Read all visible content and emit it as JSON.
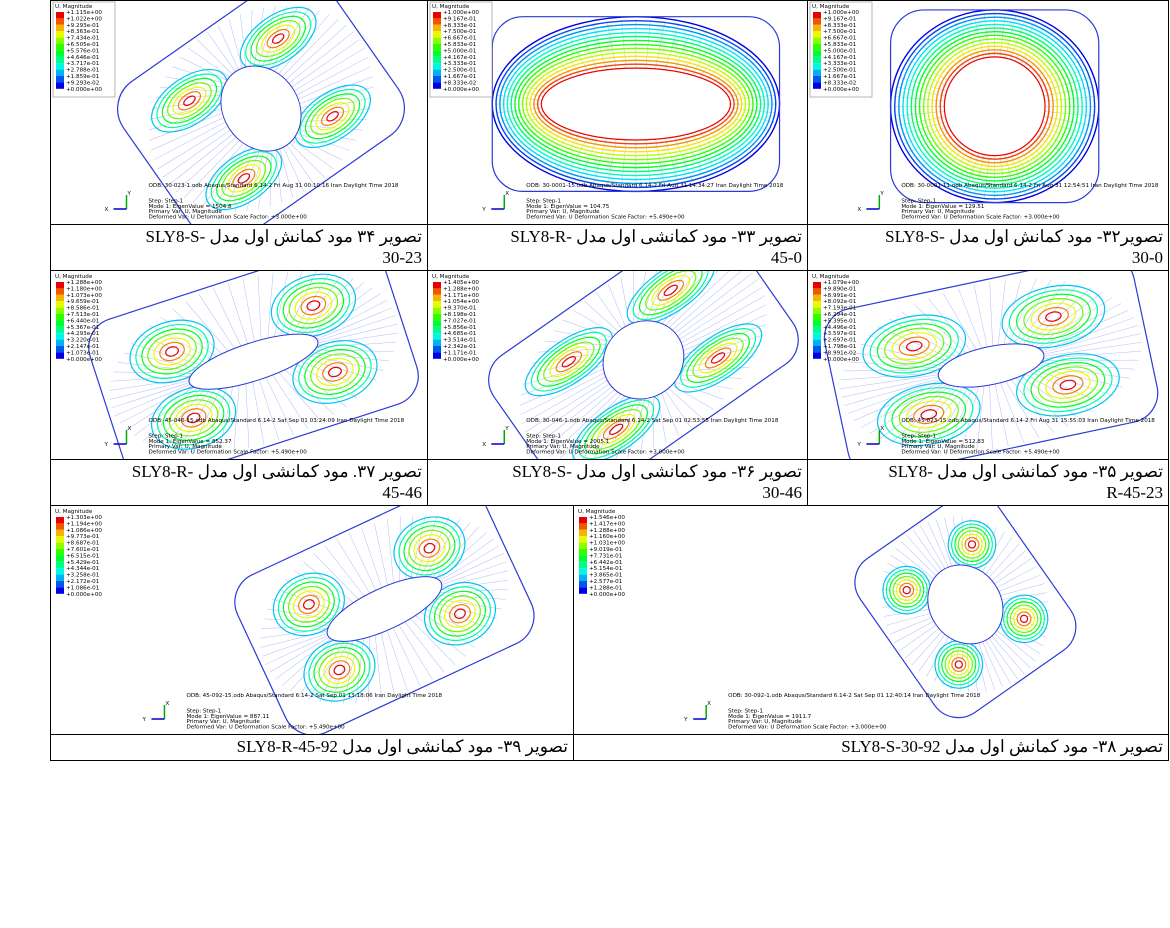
{
  "figures": [
    {
      "caption": [
        "تصویر۳۲- مود کمانش اول مدل -SLY8-S",
        "30-0"
      ],
      "legend": {
        "title": "U, Magnitude",
        "values": [
          "+1.000e+00",
          "+9.167e-01",
          "+8.333e-01",
          "+7.500e-01",
          "+6.667e-01",
          "+5.833e-01",
          "+5.000e-01",
          "+4.167e-01",
          "+3.333e-01",
          "+2.500e-01",
          "+1.667e-01",
          "+8.333e-02",
          "+0.000e+00"
        ]
      },
      "info": [
        "ODB: 30-0001-11.odb    Abaqus/Standard 6.14-2    Fri Aug 31 12:54:51 Iran Daylight Time 2018",
        "Step: Step-1",
        "Mode        1: EigenValue =    129.51",
        "Primary Var: U, Magnitude",
        "Deformed Var: U   Deformation Scale Factor: +3.000e+00"
      ],
      "triad": [
        "Y",
        "X"
      ]
    },
    {
      "caption": [
        "تصویر ۳۳- مود کمانشی اول مدل -SLY8-R",
        "45-0"
      ],
      "legend": {
        "title": "U, Magnitude",
        "values": [
          "+1.000e+00",
          "+9.167e-01",
          "+8.333e-01",
          "+7.500e-01",
          "+6.667e-01",
          "+5.833e-01",
          "+5.000e-01",
          "+4.167e-01",
          "+3.333e-01",
          "+2.500e-01",
          "+1.667e-01",
          "+8.333e-02",
          "+0.000e+00"
        ]
      },
      "info": [
        "ODB: 30-0001-15.odb    Abaqus/Standard 6.14-2    Fri Aug 31 14:34:27 Iran Daylight Time 2018",
        "Step: Step-1",
        "Mode        1: EigenValue =    104.75",
        "Primary Var: U, Magnitude",
        "Deformed Var: U   Deformation Scale Factor: +5.490e+00"
      ],
      "triad": [
        "X",
        "Y"
      ]
    },
    {
      "caption": [
        "تصویر ۳۴ مود کمانش اول مدل -SLY8-S",
        "30-23"
      ],
      "legend": {
        "title": "U, Magnitude",
        "values": [
          "+1.115e+00",
          "+1.022e+00",
          "+9.293e-01",
          "+8.363e-01",
          "+7.434e-01",
          "+6.505e-01",
          "+5.576e-01",
          "+4.646e-01",
          "+3.717e-01",
          "+2.788e-01",
          "+1.859e-01",
          "+9.293e-02",
          "+0.000e+00"
        ]
      },
      "info": [
        "ODB: 30-023-1.odb    Abaqus/Standard 6.14-2    Fri Aug 31 00:10:16 Iran Daylight Time 2018",
        "Step: Step-1",
        "Mode        1: EigenValue =    1504.8",
        "Primary Var: U, Magnitude",
        "Deformed Var: U   Deformation Scale Factor: +3.000e+00"
      ],
      "triad": [
        "Y",
        "X"
      ]
    },
    {
      "caption": [
        "تصویر ۳۵- مود کمانشی اول مدل -SLY8",
        "R-45-23"
      ],
      "legend": {
        "title": "U, Magnitude",
        "values": [
          "+1.079e+00",
          "+9.890e-01",
          "+8.991e-01",
          "+8.092e-01",
          "+7.193e-01",
          "+6.294e-01",
          "+5.395e-01",
          "+4.496e-01",
          "+3.597e-01",
          "+2.697e-01",
          "+1.798e-01",
          "+8.991e-02",
          "+0.000e+00"
        ]
      },
      "info": [
        "ODB: 45-023-15.odb    Abaqus/Standard 6.14-2    Fri Aug 31 15:55:03 Iran Daylight Time 2018",
        "Step: Step-1",
        "Mode        1: EigenValue =    512.83",
        "Primary Var: U, Magnitude",
        "Deformed Var: U   Deformation Scale Factor: +5.490e+00"
      ],
      "triad": [
        "X",
        "Y"
      ]
    },
    {
      "caption": [
        "تصویر ۳۶- مود کمانشی اول مدل -SLY8-S",
        "30-46"
      ],
      "legend": {
        "title": "U, Magnitude",
        "values": [
          "+1.405e+00",
          "+1.288e+00",
          "+1.171e+00",
          "+1.054e+00",
          "+9.370e-01",
          "+8.198e-01",
          "+7.027e-01",
          "+5.856e-01",
          "+4.685e-01",
          "+3.514e-01",
          "+2.342e-01",
          "+1.171e-01",
          "+0.000e+00"
        ]
      },
      "info": [
        "ODB: 30-046-1.odb    Abaqus/Standard 6.14-2    Sat Sep 01 02:53:55 Iran Daylight Time 2018",
        "Step: Step-1",
        "Mode        1: EigenValue =    2005.1",
        "Primary Var: U, Magnitude",
        "Deformed Var: U   Deformation Scale Factor: +3.000e+00"
      ],
      "triad": [
        "Y",
        "X"
      ]
    },
    {
      "caption": [
        "تصویر ۳۷. مود کمانشی اول مدل -SLY8-R",
        "45-46"
      ],
      "legend": {
        "title": "U, Magnitude",
        "values": [
          "+1.288e+00",
          "+1.180e+00",
          "+1.073e+00",
          "+9.659e-01",
          "+8.586e-01",
          "+7.513e-01",
          "+6.440e-01",
          "+5.367e-01",
          "+4.293e-01",
          "+3.220e-01",
          "+2.147e-01",
          "+1.073e-01",
          "+0.000e+00"
        ]
      },
      "info": [
        "ODB: 45-046-15.odb    Abaqus/Standard 6.14-2    Sat Sep 01 03:24:09 Iran Daylight Time 2018",
        "Step: Step-1",
        "Mode        1: EigenValue =    852.37",
        "Primary Var: U, Magnitude",
        "Deformed Var: U   Deformation Scale Factor: +5.490e+00"
      ],
      "triad": [
        "X",
        "Y"
      ]
    },
    {
      "caption": [
        "تصویر ۳۸- مود کمانش اول مدل SLY8-S-30-92"
      ],
      "legend": {
        "title": "U, Magnitude",
        "values": [
          "+1.546e+00",
          "+1.417e+00",
          "+1.288e+00",
          "+1.160e+00",
          "+1.031e+00",
          "+9.019e-01",
          "+7.731e-01",
          "+6.442e-01",
          "+5.154e-01",
          "+3.865e-01",
          "+2.577e-01",
          "+1.288e-01",
          "+0.000e+00"
        ]
      },
      "info": [
        "ODB: 30-092-1.odb    Abaqus/Standard 6.14-2    Sat Sep 01 12:40:14 Iran Daylight Time 2018",
        "Step: Step-1",
        "Mode        1: EigenValue =    1911.7",
        "Primary Var: U, Magnitude",
        "Deformed Var: U   Deformation Scale Factor: +3.000e+00"
      ],
      "triad": [
        "X",
        "Y"
      ]
    },
    {
      "caption": [
        "تصویر ۳۹- مود کمانشی اول مدل SLY8-R-45-92"
      ],
      "legend": {
        "title": "U, Magnitude",
        "values": [
          "+1.303e+00",
          "+1.194e+00",
          "+1.086e+00",
          "+9.773e-01",
          "+8.687e-01",
          "+7.601e-01",
          "+6.515e-01",
          "+5.429e-01",
          "+4.344e-01",
          "+3.258e-01",
          "+2.172e-01",
          "+1.086e-01",
          "+0.000e+00"
        ]
      },
      "info": [
        "ODB: 45-092-15.odb    Abaqus/Standard 6.14-2    Sat Sep 01 13:18:06 Iran Daylight Time 2018",
        "Step: Step-1",
        "Mode        1: EigenValue =    887.11",
        "Primary Var: U, Magnitude",
        "Deformed Var: U   Deformation Scale Factor: +5.490e+00"
      ],
      "triad": [
        "X",
        "Y"
      ]
    }
  ]
}
